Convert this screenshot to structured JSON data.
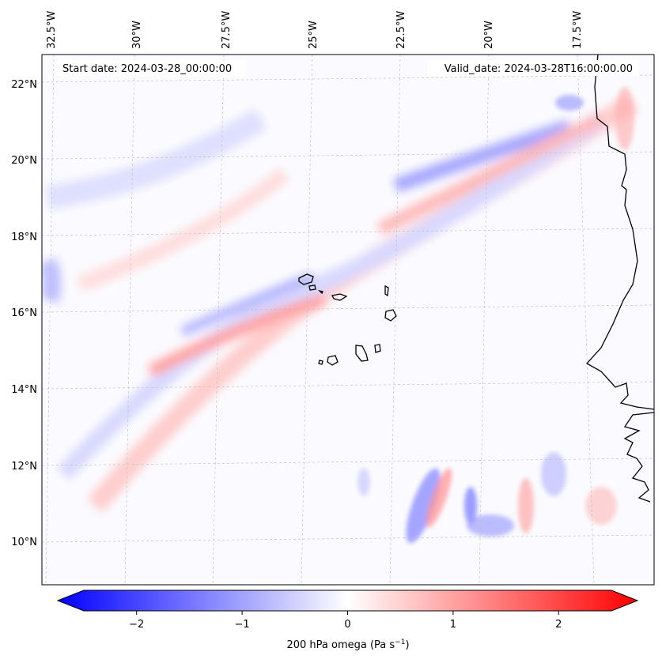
{
  "map": {
    "start_date": "Start date: 2024-03-28_00:00:00",
    "valid_date": "Valid_date: 2024-03-28T16:00:00.00",
    "lon_labels": [
      "32.5°W",
      "30°W",
      "27.5°W",
      "25°W",
      "22.5°W",
      "20°W",
      "17.5°W"
    ],
    "lat_labels": [
      "22°N",
      "20°N",
      "18°N",
      "16°N",
      "14°N",
      "12°N",
      "10°N"
    ],
    "colorbar": {
      "label": "200 hPa omega (Pa s",
      "label_exponent": "−1",
      "label_close": ")",
      "ticks": [
        "−2",
        "−1",
        "0",
        "1",
        "2"
      ],
      "tick_values": [
        -2,
        -1,
        0,
        1,
        2
      ],
      "range": [
        -2.5,
        2.5
      ],
      "cmap": "bwr",
      "colors": {
        "negative": "#0000ff",
        "neutral": "#ffffff",
        "positive": "#ff0000"
      }
    },
    "field": "200 hPa omega",
    "coastline_color": "#000000",
    "gridline_color": "#bbbbbb"
  }
}
